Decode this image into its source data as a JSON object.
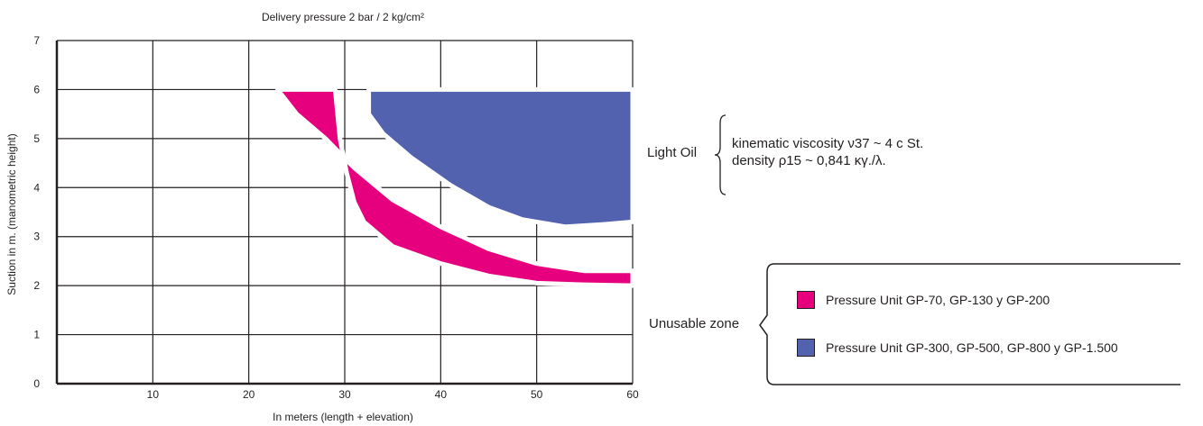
{
  "chart_data": {
    "type": "area",
    "title": "Delivery pressure 2 bar / 2 kg/cm²",
    "xlabel": "In meters (length + elevation)",
    "ylabel": "Suction in m. (manometric height)",
    "xlim": [
      0,
      60
    ],
    "ylim": [
      0,
      7
    ],
    "xticks": [
      "10",
      "20",
      "30",
      "40",
      "50",
      "60"
    ],
    "yticks": [
      "0",
      "1",
      "2",
      "3",
      "4",
      "5",
      "6",
      "7"
    ],
    "grid": true,
    "series": [
      {
        "name": "Pressure Unit GP-70, GP-130 y GP-200",
        "color": "#e6007e",
        "upper": [
          [
            23,
            6
          ],
          [
            25,
            5.5
          ],
          [
            28,
            5.0
          ],
          [
            31,
            4.4
          ],
          [
            35,
            3.75
          ],
          [
            40,
            3.2
          ],
          [
            45,
            2.75
          ],
          [
            50,
            2.45
          ],
          [
            55,
            2.3
          ],
          [
            60,
            2.3
          ]
        ],
        "lower": [
          [
            60,
            2.0
          ],
          [
            55,
            2.02
          ],
          [
            50,
            2.05
          ],
          [
            45,
            2.2
          ],
          [
            40,
            2.45
          ],
          [
            35,
            2.8
          ],
          [
            32,
            3.3
          ],
          [
            31,
            3.7
          ],
          [
            30.2,
            4.3
          ],
          [
            29.5,
            5.0
          ],
          [
            29,
            6
          ]
        ]
      },
      {
        "name": "Pressure Unit GP-300, GP-500, GP-800 y GP-1.500",
        "color": "#5262af",
        "upper": [
          [
            32.5,
            6
          ],
          [
            60,
            6
          ]
        ],
        "lower": [
          [
            60,
            3.3
          ],
          [
            57,
            3.25
          ],
          [
            53,
            3.2
          ],
          [
            48.5,
            3.35
          ],
          [
            45,
            3.6
          ],
          [
            41,
            4.05
          ],
          [
            37,
            4.6
          ],
          [
            34,
            5.1
          ],
          [
            32.5,
            5.5
          ],
          [
            32.5,
            6
          ]
        ]
      }
    ]
  },
  "notes": {
    "light_oil": "Light Oil",
    "viscosity": "kinematic viscosity ν37 ~ 4 c St.",
    "density": "density ρ15 ~ 0,841 κγ./λ.",
    "unusable_zone": "Unusable zone"
  },
  "legend": [
    {
      "label": "Pressure Unit GP-70, GP-130 y GP-200",
      "color": "#e6007e"
    },
    {
      "label": "Pressure Unit GP-300, GP-500, GP-800 y GP-1.500",
      "color": "#5262af"
    }
  ]
}
